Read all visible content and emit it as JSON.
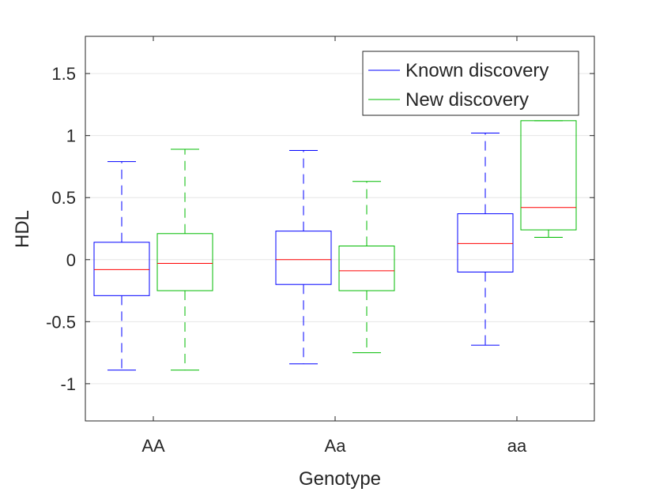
{
  "chart_data": {
    "type": "boxplot",
    "title": "",
    "xlabel": "Genotype",
    "ylabel": "HDL",
    "categories": [
      "AA",
      "Aa",
      "aa"
    ],
    "ylim": [
      -1.3,
      1.8
    ],
    "yticks": [
      -1,
      -0.5,
      0,
      0.5,
      1,
      1.5
    ],
    "ytick_labels": [
      "-1",
      "-0.5",
      "0",
      "0.5",
      "1",
      "1.5"
    ],
    "grid": "y",
    "legend_position": "top-right",
    "median_color": "#ff0000",
    "series": [
      {
        "name": "Known discovery",
        "color": "#0000ff",
        "boxes": [
          {
            "category": "AA",
            "whisker_low": -0.89,
            "q1": -0.29,
            "median": -0.08,
            "q3": 0.14,
            "whisker_high": 0.79
          },
          {
            "category": "Aa",
            "whisker_low": -0.84,
            "q1": -0.2,
            "median": 0.0,
            "q3": 0.23,
            "whisker_high": 0.88
          },
          {
            "category": "aa",
            "whisker_low": -0.69,
            "q1": -0.1,
            "median": 0.13,
            "q3": 0.37,
            "whisker_high": 1.02
          }
        ]
      },
      {
        "name": "New discovery",
        "color": "#00bb00",
        "boxes": [
          {
            "category": "AA",
            "whisker_low": -0.89,
            "q1": -0.25,
            "median": -0.03,
            "q3": 0.21,
            "whisker_high": 0.89
          },
          {
            "category": "Aa",
            "whisker_low": -0.75,
            "q1": -0.25,
            "median": -0.09,
            "q3": 0.11,
            "whisker_high": 0.63
          },
          {
            "category": "aa",
            "whisker_low": 0.18,
            "q1": 0.24,
            "median": 0.42,
            "q3": 1.12,
            "whisker_high": 1.12
          }
        ]
      }
    ]
  }
}
